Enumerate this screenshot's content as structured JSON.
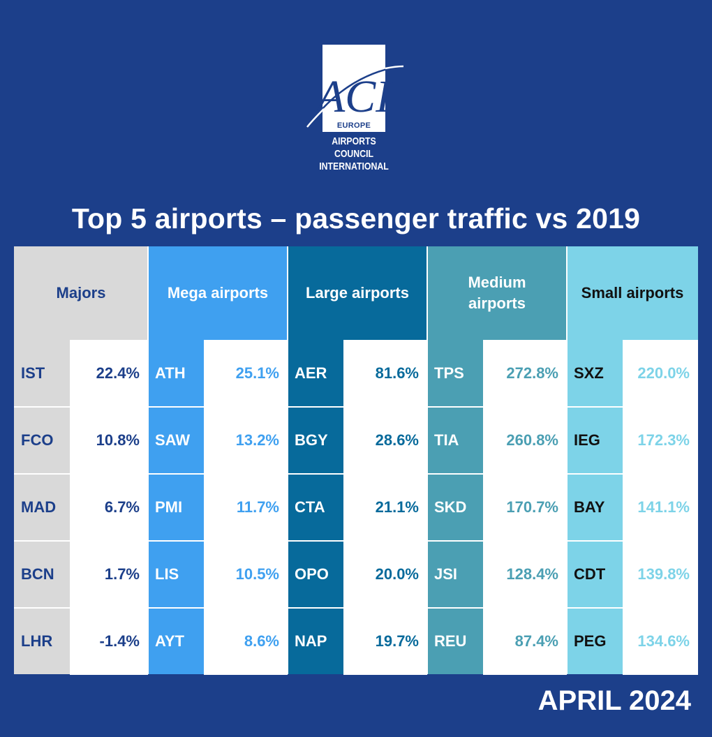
{
  "logo": {
    "letters": "ACI",
    "region": "EUROPE",
    "org_line1": "AIRPORTS COUNCIL",
    "org_line2": "INTERNATIONAL"
  },
  "title": "Top 5 airports – passenger traffic vs 2019",
  "date": "APRIL 2024",
  "colors": {
    "background": "#1c3f8a",
    "majors": "#d9d9d9",
    "mega": "#3fa0f0",
    "large": "#076a9b",
    "medium": "#4b9fb3",
    "small": "#7dd3e8"
  },
  "categories": [
    {
      "header": "Majors",
      "rows": [
        {
          "code": "IST",
          "value": "22.4%"
        },
        {
          "code": "FCO",
          "value": "10.8%"
        },
        {
          "code": "MAD",
          "value": "6.7%"
        },
        {
          "code": "BCN",
          "value": "1.7%"
        },
        {
          "code": "LHR",
          "value": "-1.4%"
        }
      ]
    },
    {
      "header": "Mega airports",
      "rows": [
        {
          "code": "ATH",
          "value": "25.1%"
        },
        {
          "code": "SAW",
          "value": "13.2%"
        },
        {
          "code": "PMI",
          "value": "11.7%"
        },
        {
          "code": "LIS",
          "value": "10.5%"
        },
        {
          "code": "AYT",
          "value": "8.6%"
        }
      ]
    },
    {
      "header": "Large airports",
      "rows": [
        {
          "code": "AER",
          "value": "81.6%"
        },
        {
          "code": "BGY",
          "value": "28.6%"
        },
        {
          "code": "CTA",
          "value": "21.1%"
        },
        {
          "code": "OPO",
          "value": "20.0%"
        },
        {
          "code": "NAP",
          "value": "19.7%"
        }
      ]
    },
    {
      "header": "Medium airports",
      "rows": [
        {
          "code": "TPS",
          "value": "272.8%"
        },
        {
          "code": "TIA",
          "value": "260.8%"
        },
        {
          "code": "SKD",
          "value": "170.7%"
        },
        {
          "code": "JSI",
          "value": "128.4%"
        },
        {
          "code": "REU",
          "value": "87.4%"
        }
      ]
    },
    {
      "header": "Small airports",
      "rows": [
        {
          "code": "SXZ",
          "value": "220.0%"
        },
        {
          "code": "IEG",
          "value": "172.3%"
        },
        {
          "code": "BAY",
          "value": "141.1%"
        },
        {
          "code": "CDT",
          "value": "139.8%"
        },
        {
          "code": "PEG",
          "value": "134.6%"
        }
      ]
    }
  ]
}
